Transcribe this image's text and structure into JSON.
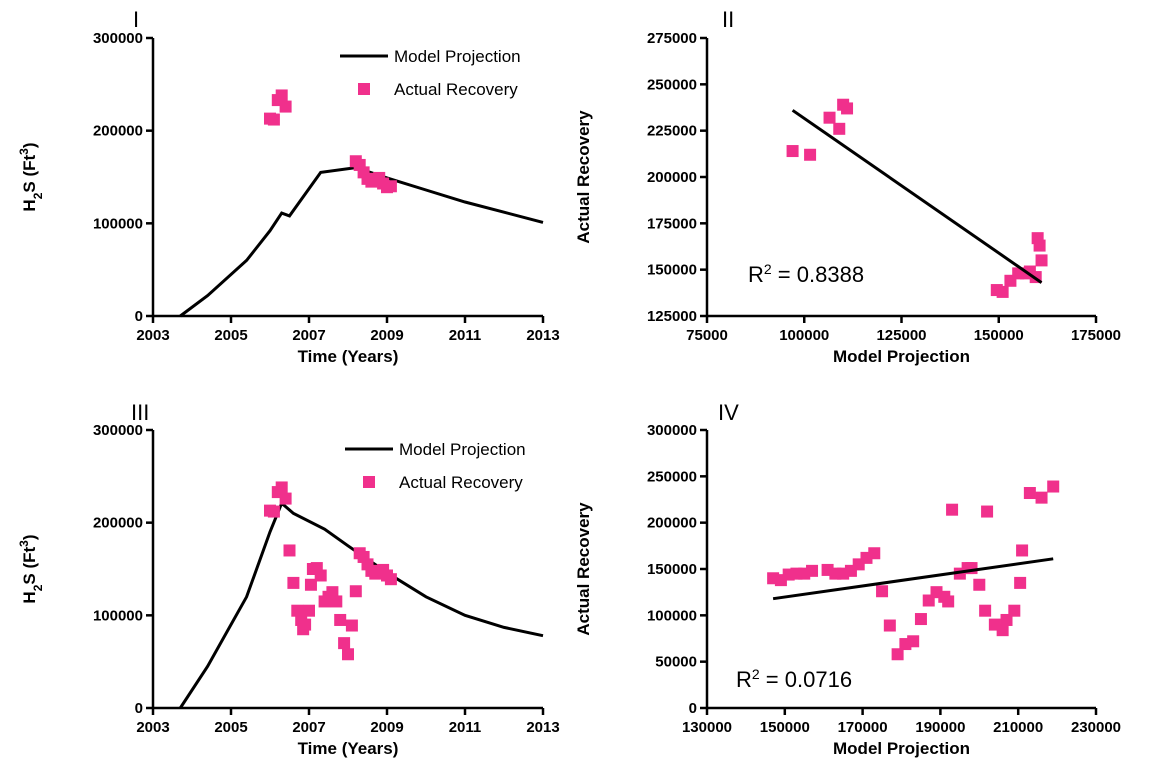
{
  "chart_data": [
    {
      "panel_label": "I",
      "type": "line",
      "xlabel": "Time (Years)",
      "ylabel_main": "H",
      "ylabel_sub": "2",
      "ylabel_mid": "S (Ft",
      "ylabel_sup": "3",
      "ylabel_end": ")",
      "xlim": [
        2003,
        2013
      ],
      "ylim": [
        0,
        300000
      ],
      "xticks": [
        2003,
        2005,
        2007,
        2009,
        2011,
        2013
      ],
      "yticks": [
        0,
        100000,
        200000,
        300000
      ],
      "legend": {
        "line_label": "Model Projection",
        "points_label": "Actual Recovery"
      },
      "series": [
        {
          "name": "Model Projection",
          "kind": "line",
          "x": [
            2003.7,
            2004.4,
            2005.4,
            2006.0,
            2006.3,
            2006.5,
            2007.3,
            2008.2,
            2009.0,
            2010.0,
            2011.0,
            2012.0,
            2013.0
          ],
          "y": [
            0,
            22000,
            60000,
            92000,
            111000,
            108000,
            155000,
            160000,
            149000,
            136000,
            123000,
            112000,
            101000
          ]
        },
        {
          "name": "Actual Recovery",
          "kind": "points",
          "x": [
            2006.0,
            2006.1,
            2006.2,
            2006.3,
            2006.4,
            2008.2,
            2008.3,
            2008.4,
            2008.5,
            2008.6,
            2008.7,
            2008.8,
            2008.9,
            2009.0,
            2009.1
          ],
          "y": [
            213000,
            212000,
            233000,
            238000,
            226000,
            167000,
            163000,
            155000,
            148000,
            145000,
            147000,
            149000,
            143000,
            139000,
            140000
          ]
        }
      ]
    },
    {
      "panel_label": "II",
      "type": "scatter",
      "xlabel": "Model Projection",
      "ylabel": "Actual Recovery",
      "xlim": [
        75000,
        175000
      ],
      "ylim": [
        125000,
        275000
      ],
      "xticks": [
        75000,
        100000,
        125000,
        150000,
        175000
      ],
      "yticks": [
        125000,
        150000,
        175000,
        200000,
        225000,
        250000,
        275000
      ],
      "r2_label": "R",
      "r2_sup": "2",
      "r2_value": " = 0.8388",
      "series": [
        {
          "name": "points",
          "kind": "points",
          "x": [
            97000,
            101500,
            106500,
            109000,
            110000,
            111000,
            149500,
            151000,
            153000,
            155000,
            157000,
            158000,
            159500,
            160000,
            160500,
            161000
          ],
          "y": [
            214000,
            212000,
            232000,
            226000,
            239000,
            237000,
            139000,
            138000,
            144000,
            148000,
            148000,
            149000,
            146000,
            167000,
            163000,
            155000
          ]
        },
        {
          "name": "fit",
          "kind": "line",
          "x": [
            97000,
            161000
          ],
          "y": [
            236000,
            143000
          ]
        }
      ]
    },
    {
      "panel_label": "III",
      "type": "line",
      "xlabel": "Time (Years)",
      "ylabel_main": "H",
      "ylabel_sub": "2",
      "ylabel_mid": "S (Ft",
      "ylabel_sup": "3",
      "ylabel_end": ")",
      "xlim": [
        2003,
        2013
      ],
      "ylim": [
        0,
        300000
      ],
      "xticks": [
        2003,
        2005,
        2007,
        2009,
        2011,
        2013
      ],
      "yticks": [
        0,
        100000,
        200000,
        300000
      ],
      "legend": {
        "line_label": "Model Projection",
        "points_label": "Actual Recovery"
      },
      "series": [
        {
          "name": "Model Projection",
          "kind": "line",
          "x": [
            2003.7,
            2004.4,
            2005.4,
            2006.0,
            2006.3,
            2006.6,
            2007.4,
            2008.0,
            2009.0,
            2010.0,
            2011.0,
            2012.0,
            2013.0
          ],
          "y": [
            0,
            45000,
            120000,
            190000,
            221000,
            210000,
            193000,
            175000,
            146000,
            120000,
            100000,
            87000,
            78000
          ]
        },
        {
          "name": "Actual Recovery",
          "kind": "points",
          "x": [
            2006.0,
            2006.1,
            2006.2,
            2006.3,
            2006.4,
            2006.5,
            2006.6,
            2006.7,
            2006.8,
            2006.85,
            2006.9,
            2007.0,
            2007.05,
            2007.1,
            2007.2,
            2007.3,
            2007.4,
            2007.5,
            2007.6,
            2007.7,
            2007.8,
            2007.9,
            2008.0,
            2008.1,
            2008.2,
            2008.3,
            2008.4,
            2008.5,
            2008.6,
            2008.7,
            2008.8,
            2008.9,
            2009.0,
            2009.1
          ],
          "y": [
            213000,
            212000,
            233000,
            238000,
            226000,
            170000,
            135000,
            105000,
            95000,
            85000,
            90000,
            105000,
            133000,
            150000,
            151000,
            143000,
            115000,
            120000,
            125000,
            115000,
            95000,
            70000,
            58000,
            89000,
            126000,
            167000,
            163000,
            155000,
            148000,
            145000,
            147000,
            149000,
            143000,
            139000
          ]
        }
      ]
    },
    {
      "panel_label": "IV",
      "type": "scatter",
      "xlabel": "Model Projection",
      "ylabel": "Actual Recovery",
      "xlim": [
        130000,
        230000
      ],
      "ylim": [
        0,
        300000
      ],
      "xticks": [
        130000,
        150000,
        170000,
        190000,
        210000,
        230000
      ],
      "yticks": [
        0,
        50000,
        100000,
        150000,
        200000,
        250000,
        300000
      ],
      "r2_label": "R",
      "r2_sup": "2",
      "r2_value": " = 0.0716",
      "series": [
        {
          "name": "points",
          "kind": "points",
          "x": [
            147000,
            149000,
            151000,
            153000,
            155000,
            157000,
            161000,
            163000,
            165000,
            167000,
            169000,
            171000,
            173000,
            175000,
            177000,
            179000,
            181000,
            183000,
            185000,
            187000,
            189000,
            191000,
            192000,
            193000,
            195000,
            197000,
            198000,
            200000,
            201500,
            202000,
            204000,
            206000,
            207000,
            209000,
            210500,
            211000,
            213000,
            216000,
            219000
          ],
          "y": [
            140000,
            138000,
            144000,
            145000,
            145000,
            148000,
            149000,
            145000,
            145000,
            148000,
            155000,
            162000,
            167000,
            126000,
            89000,
            58000,
            69000,
            72000,
            96000,
            116000,
            125000,
            120000,
            115000,
            214000,
            145000,
            151000,
            151000,
            133000,
            105000,
            212000,
            90000,
            84000,
            95000,
            105000,
            135000,
            170000,
            232000,
            227000,
            239000
          ]
        },
        {
          "name": "fit",
          "kind": "line",
          "x": [
            147000,
            219000
          ],
          "y": [
            118000,
            161000
          ]
        }
      ]
    }
  ]
}
